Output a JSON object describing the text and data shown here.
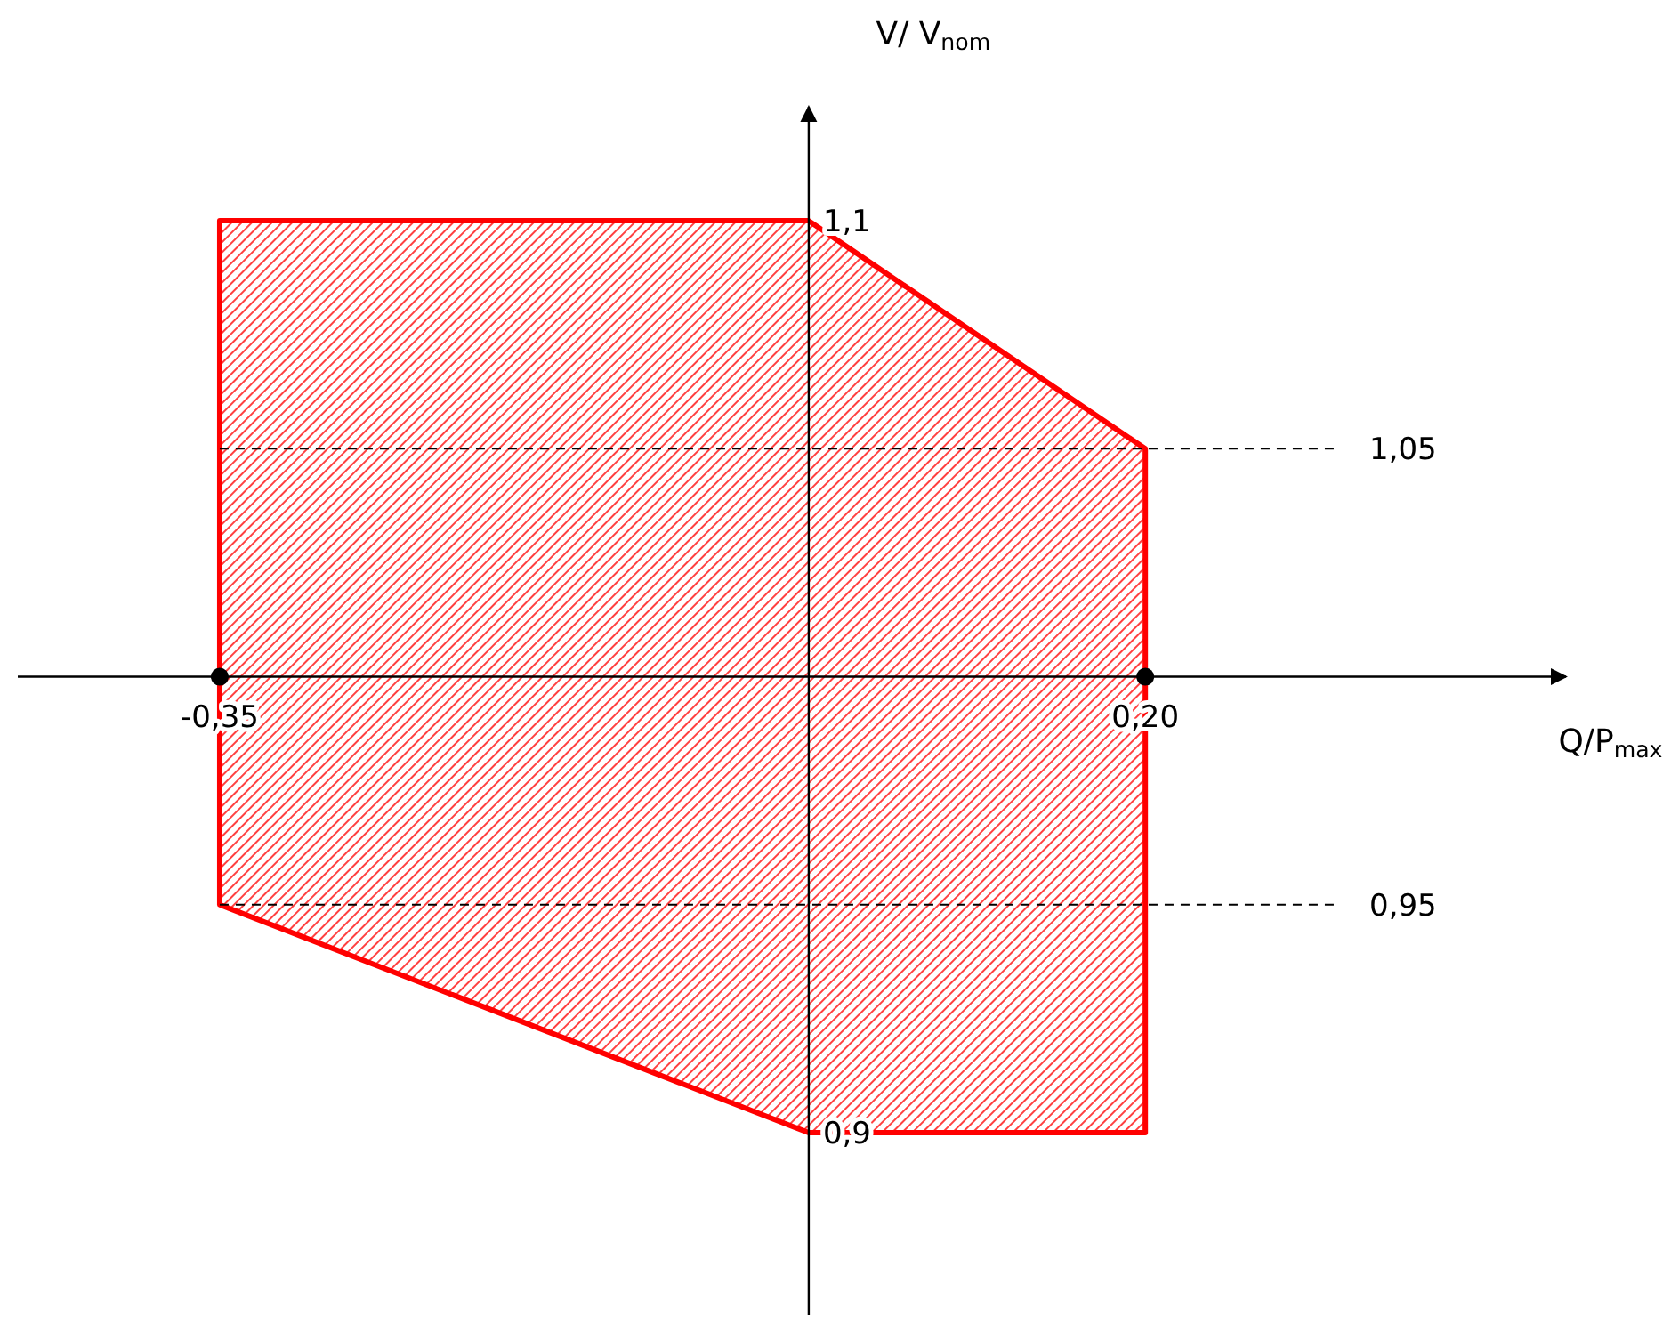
{
  "chart_data": {
    "type": "area",
    "xlabel": "Q/P$_{max}$",
    "ylabel": "V/ V$_{nom}$",
    "xlim": [
      -0.47,
      0.45
    ],
    "ylim": [
      0.86,
      1.125
    ],
    "xticks": [
      {
        "value": -0.35,
        "label": "-0,35"
      },
      {
        "value": 0.2,
        "label": "0,20"
      }
    ],
    "yticks": [
      {
        "value": 1.1,
        "label": "1,1"
      },
      {
        "value": 1,
        "label": null
      },
      {
        "value": 0.9,
        "label": "0,9"
      }
    ],
    "series": [
      {
        "color": "#ff0000",
        "x": [
          -0.35,
          0,
          0.2,
          0.2,
          0,
          -0.35,
          -0.35
        ],
        "values": [
          1.1,
          1.1,
          1.05,
          0.9,
          0.9,
          0.95,
          1.1
        ]
      },
      {
        "type": "scatter",
        "color": "#000000",
        "marker": "circle",
        "x": [
          -0.35,
          0.2
        ],
        "values": [
          1,
          1
        ]
      }
    ],
    "ref_lines": [
      {
        "axis": "y",
        "value": 1.05,
        "label": "1,05",
        "line_style": "dashed",
        "color": "#000000"
      },
      {
        "axis": "y",
        "value": 0.95,
        "label": "0,95",
        "line_style": "dashed",
        "color": "#000000"
      }
    ],
    "grid": false
  }
}
